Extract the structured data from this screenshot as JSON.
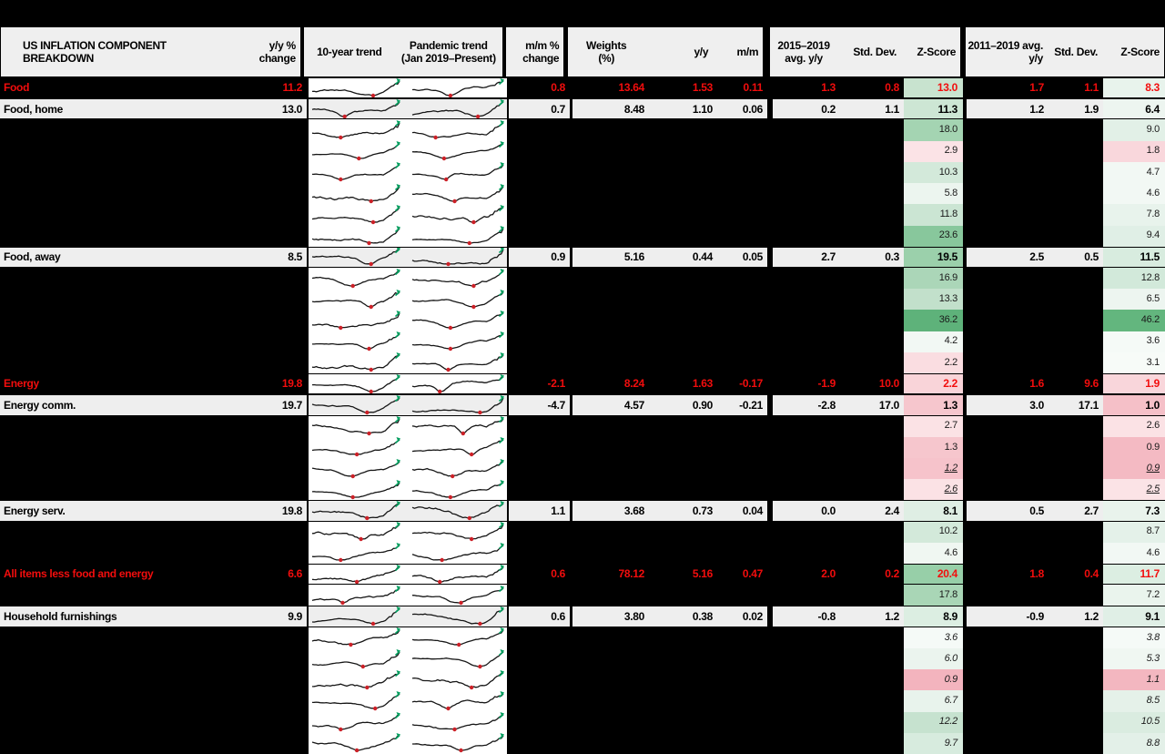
{
  "header": {
    "title": "US INFLATION COMPONENT BREAKDOWN",
    "yy_change": "y/y %\nchange",
    "trend_10yr": "10-year trend",
    "trend_pandemic": "Pandemic trend\n(Jan 2019–Present)",
    "mm_change": "m/m %\nchange",
    "weights": "Weights\n(%)",
    "yy": "y/y",
    "mm": "m/m",
    "avg1": "2015–2019\navg. y/y",
    "std1": "Std. Dev.",
    "z1": "Z-Score",
    "avg2": "2011–2019 avg.\ny/y",
    "std2": "Std. Dev.",
    "z2": "Z-Score"
  },
  "accent_colors": {
    "red_text": "#f20d0d",
    "row_bg": "#eeeeee",
    "spark_line": "#161616",
    "spark_min_marker": "#cc2027",
    "spark_end_marker": "#009e5f",
    "strong_green": "#5eb27a",
    "strong_pink": "#f3b4be"
  },
  "chart_data": {
    "type": "table",
    "title": "US INFLATION COMPONENT BREAKDOWN",
    "columns": [
      "Component",
      "y/y % change",
      "10-year trend",
      "Pandemic trend (Jan 2019–Present)",
      "m/m % change",
      "Weights (%)",
      "y/y",
      "m/m",
      "2015–2019 avg. y/y",
      "Std. Dev.",
      "Z-Score",
      "2011–2019 avg. y/y",
      "Std. Dev.",
      "Z-Score"
    ],
    "rows": [
      {
        "type": "red",
        "label": "Food",
        "yy_change": "11.2",
        "mm_change": "0.8",
        "weights": "13.64",
        "yy": "1.53",
        "mm": "0.11",
        "avg1": "1.3",
        "std1": "0.8",
        "z1": "13.0",
        "z1bg": "#c8e3cf",
        "avg2": "1.7",
        "std2": "1.1",
        "z2": "8.3",
        "z2bg": "#e8f3ec"
      },
      {
        "type": "named",
        "label": "Food, home",
        "yy_change": "13.0",
        "mm_change": "0.7",
        "weights": "8.48",
        "yy": "1.10",
        "mm": "0.06",
        "avg1": "0.2",
        "std1": "1.1",
        "z1": "11.3",
        "z1bg": "#cde6d4",
        "avg2": "1.2",
        "std2": "1.9",
        "z2": "6.4",
        "z2bg": "#edf5f0"
      },
      {
        "type": "hidden",
        "z1": "18.0",
        "z1bg": "#a4d4b2",
        "z2": "9.0",
        "z2bg": "#e2f0e7"
      },
      {
        "type": "hidden",
        "z1": "2.9",
        "z1bg": "#fbe3e6",
        "z2": "1.8",
        "z2bg": "#f9d7dc"
      },
      {
        "type": "hidden",
        "z1": "10.3",
        "z1bg": "#d3e9da",
        "z2": "4.7",
        "z2bg": "#f2f8f4"
      },
      {
        "type": "hidden",
        "z1": "5.8",
        "z1bg": "#ecf5ef",
        "z2": "4.6",
        "z2bg": "#f2f8f4"
      },
      {
        "type": "hidden",
        "z1": "11.8",
        "z1bg": "#cbe5d3",
        "z2": "7.8",
        "z2bg": "#e8f3ec"
      },
      {
        "type": "hidden",
        "z1": "23.6",
        "z1bg": "#88c79c",
        "z2": "9.4",
        "z2bg": "#e0efe6"
      },
      {
        "type": "named",
        "label": "Food, away",
        "yy_change": "8.5",
        "mm_change": "0.9",
        "weights": "5.16",
        "yy": "0.44",
        "mm": "0.05",
        "avg1": "2.7",
        "std1": "0.3",
        "z1": "19.5",
        "z1bg": "#9bd0ab",
        "avg2": "2.5",
        "std2": "0.5",
        "z2": "11.5",
        "z2bg": "#d8ecdf"
      },
      {
        "type": "hidden",
        "z1": "16.9",
        "z1bg": "#abd6b8",
        "z2": "12.8",
        "z2bg": "#d2e9da"
      },
      {
        "type": "hidden",
        "z1": "13.3",
        "z1bg": "#c2e0cb",
        "z2": "6.5",
        "z2bg": "#edf5f0"
      },
      {
        "type": "hidden",
        "z1": "36.2",
        "z1bg": "#5eb27a",
        "z2": "46.2",
        "z2bg": "#63b67e"
      },
      {
        "type": "hidden",
        "z1": "4.2",
        "z1bg": "#f2f8f4",
        "z2": "3.6",
        "z2bg": "#f5faf7"
      },
      {
        "type": "hidden",
        "z1": "2.2",
        "z1bg": "#fadde1",
        "z2": "3.1",
        "z2bg": "#f7fbf8"
      },
      {
        "type": "red",
        "label": "Energy",
        "yy_change": "19.8",
        "mm_change": "-2.1",
        "weights": "8.24",
        "yy": "1.63",
        "mm": "-0.17",
        "avg1": "-1.9",
        "std1": "10.0",
        "z1": "2.2",
        "z1bg": "#f9d4d9",
        "avg2": "1.6",
        "std2": "9.6",
        "z2": "1.9",
        "z2bg": "#f9d6db"
      },
      {
        "type": "named",
        "label": "Energy comm.",
        "yy_change": "19.7",
        "mm_change": "-4.7",
        "weights": "4.57",
        "yy": "0.90",
        "mm": "-0.21",
        "avg1": "-2.8",
        "std1": "17.0",
        "z1": "1.3",
        "z1bg": "#f6c6cd",
        "avg2": "3.0",
        "std2": "17.1",
        "z2": "1.0",
        "z2bg": "#f5c0c8"
      },
      {
        "type": "hidden",
        "z1": "2.7",
        "z1bg": "#fbe2e5",
        "z2": "2.6",
        "z2bg": "#fbe2e5"
      },
      {
        "type": "hidden",
        "z1": "1.3",
        "z1bg": "#f6c6cd",
        "z2": "0.9",
        "z2bg": "#f4bac3"
      },
      {
        "type": "hidden",
        "style": "iu",
        "z1": "1.2",
        "z1bg": "#f6c3cb",
        "z2": "0.9",
        "z2bg": "#f4bac3"
      },
      {
        "type": "hidden",
        "style": "iu",
        "z1": "2.6",
        "z1bg": "#fbe2e5",
        "z2": "2.5",
        "z2bg": "#fbe3e6"
      },
      {
        "type": "named",
        "label": "Energy serv.",
        "yy_change": "19.8",
        "mm_change": "1.1",
        "weights": "3.68",
        "yy": "0.73",
        "mm": "0.04",
        "avg1": "0.0",
        "std1": "2.4",
        "z1": "8.1",
        "z1bg": "#dfeee4",
        "avg2": "0.5",
        "std2": "2.7",
        "z2": "7.3",
        "z2bg": "#e9f3ec"
      },
      {
        "type": "hidden",
        "z1": "10.2",
        "z1bg": "#d3e9da",
        "z2": "8.7",
        "z2bg": "#e4f1e9"
      },
      {
        "type": "hidden",
        "z1": "4.6",
        "z1bg": "#f0f7f2",
        "z2": "4.6",
        "z2bg": "#f2f8f4"
      },
      {
        "type": "red",
        "label": "All items less food and energy",
        "yy_change": "6.6",
        "mm_change": "0.6",
        "weights": "78.12",
        "yy": "5.16",
        "mm": "0.47",
        "avg1": "2.0",
        "std1": "0.2",
        "z1": "20.4",
        "z1bg": "#97cfa8",
        "avg2": "1.8",
        "std2": "0.4",
        "z2": "11.7",
        "z2bg": "#dceee2"
      },
      {
        "type": "hidden",
        "z1": "17.8",
        "z1bg": "#a9d6b6",
        "z2": "7.2",
        "z2bg": "#eaf4ed"
      },
      {
        "type": "named",
        "label": "Household furnishings",
        "yy_change": "9.9",
        "mm_change": "0.6",
        "weights": "3.80",
        "yy": "0.38",
        "mm": "0.02",
        "avg1": "-0.8",
        "std1": "1.2",
        "z1": "8.9",
        "z1bg": "#dceee2",
        "avg2": "-0.9",
        "std2": "1.2",
        "z2": "9.1",
        "z2bg": "#e0efe6"
      },
      {
        "type": "hidden",
        "style": "i",
        "z1": "3.6",
        "z1bg": "#f5faf7",
        "z2": "3.8",
        "z2bg": "#f5faf7"
      },
      {
        "type": "hidden",
        "style": "i",
        "z1": "6.0",
        "z1bg": "#ebf4ee",
        "z2": "5.3",
        "z2bg": "#f0f7f2"
      },
      {
        "type": "hidden",
        "style": "i",
        "z1": "0.9",
        "z1bg": "#f3b4be",
        "z2": "1.1",
        "z2bg": "#f3b7c0"
      },
      {
        "type": "hidden",
        "style": "i",
        "z1": "6.7",
        "z1bg": "#e8f3ec",
        "z2": "8.5",
        "z2bg": "#e5f1e9"
      },
      {
        "type": "hidden",
        "style": "i",
        "z1": "12.2",
        "z1bg": "#c6e2cf",
        "z2": "10.5",
        "z2bg": "#daece0"
      },
      {
        "type": "hidden",
        "style": "i",
        "z1": "9.7",
        "z1bg": "#d7ebde",
        "z2": "8.8",
        "z2bg": "#e3f0e8"
      }
    ]
  }
}
